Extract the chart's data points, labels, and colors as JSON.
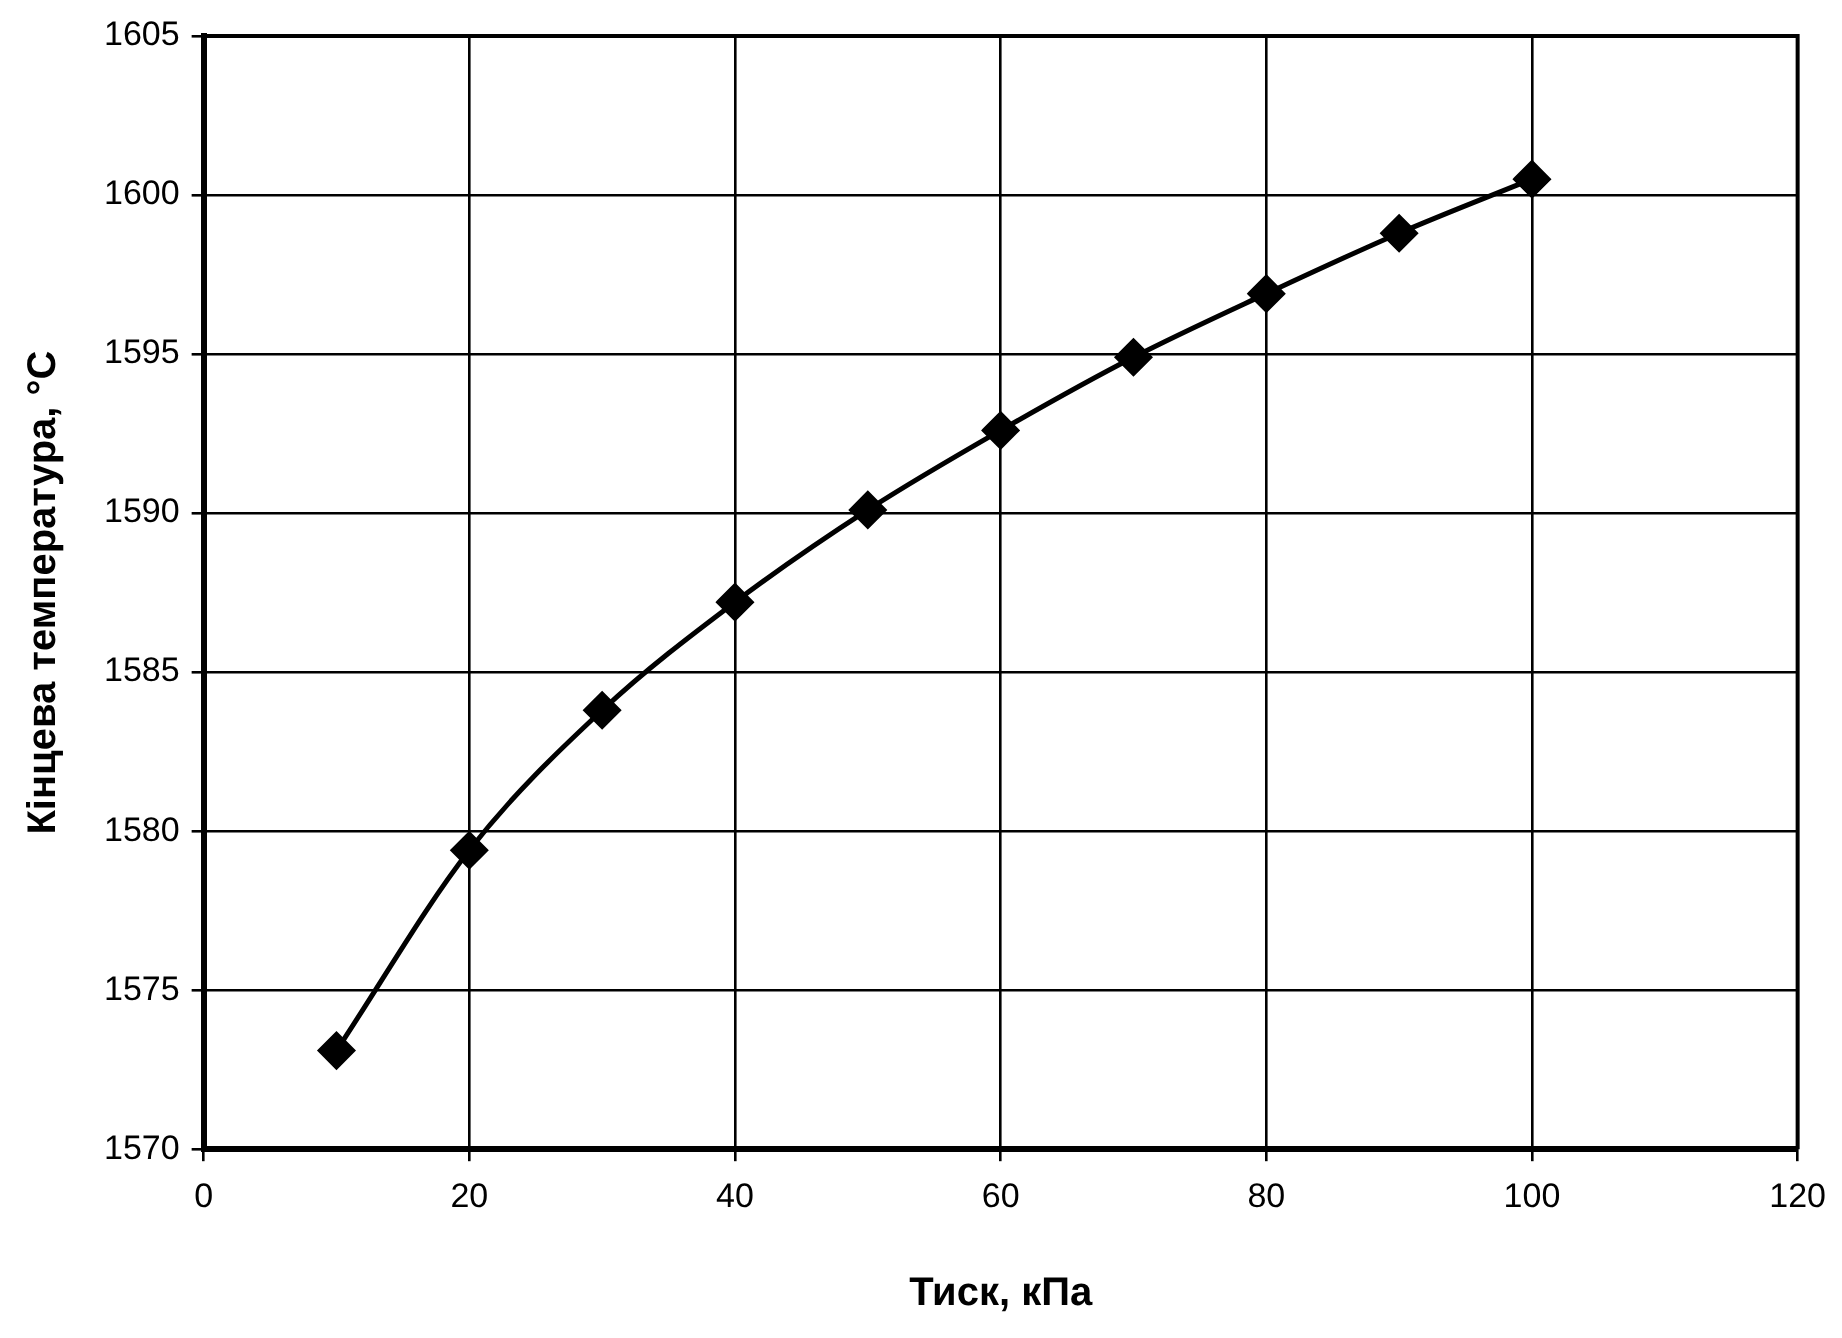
{
  "chart_data": {
    "type": "line",
    "xlabel": "Тиск, кПа",
    "ylabel": "Кінцева температура, °C",
    "x": [
      10,
      20,
      30,
      40,
      50,
      60,
      70,
      80,
      90,
      100
    ],
    "series": [
      {
        "color": "#000000",
        "values": [
          1573.1,
          1579.4,
          1583.8,
          1587.2,
          1590.1,
          1592.6,
          1594.9,
          1596.9,
          1598.8,
          1600.5
        ]
      }
    ],
    "xlim": [
      0,
      120
    ],
    "xticks": [
      0,
      20,
      40,
      60,
      80,
      100,
      120
    ],
    "ylim": [
      1570,
      1605
    ],
    "yticks": [
      1570,
      1575,
      1580,
      1585,
      1590,
      1595,
      1600,
      1605
    ],
    "grid": true,
    "legend": false,
    "marker": "diamond",
    "line_style": "solid"
  }
}
